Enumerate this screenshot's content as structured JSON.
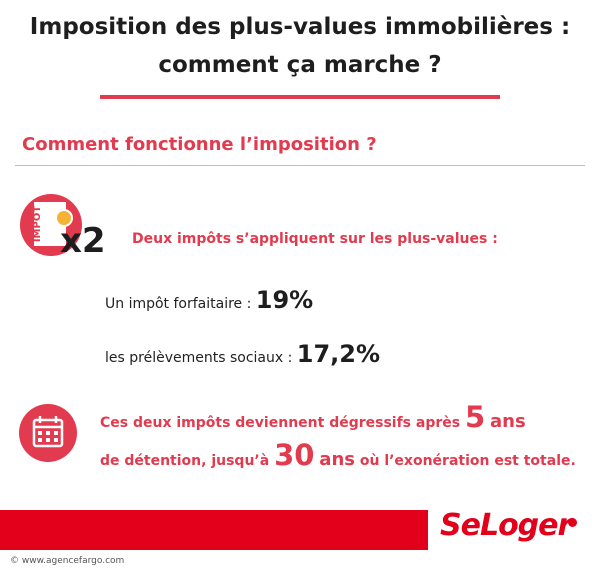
{
  "header": {
    "title": [
      "Imposition des plus-values immobilières :",
      "comment ça marche ?"
    ]
  },
  "section": {
    "heading": "Comment fonctionne l’imposition ?",
    "icon_label": "IMPÔT",
    "multiplier": "x2",
    "intro": "Deux impôts s’appliquent sur les plus-values  :",
    "items": [
      {
        "label": "Un impôt forfaitaire :",
        "rate": "19%"
      },
      {
        "label": "les prélèvements sociaux :",
        "rate": "17,2%"
      }
    ]
  },
  "note": {
    "line1": [
      "Ces deux impôts deviennent dégressifs après",
      "5",
      "ans"
    ],
    "line2": [
      "de détention, jusqu’à",
      "30",
      "ans",
      "où l’exonération est totale."
    ]
  },
  "footer": {
    "brand": "SeLoger",
    "credit": "© www.agencefargo.com"
  }
}
